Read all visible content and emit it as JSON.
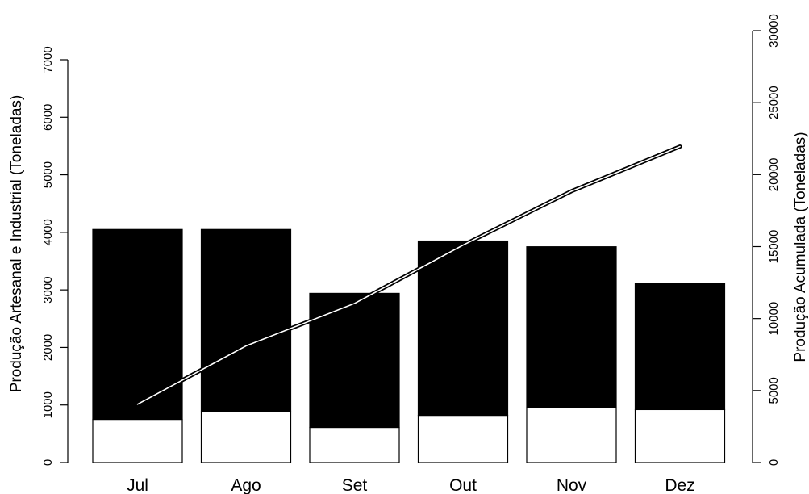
{
  "chart_data": {
    "type": "bar",
    "title": "",
    "categories": [
      "Jul",
      "Ago",
      "Set",
      "Out",
      "Nov",
      "Dez"
    ],
    "series": [
      {
        "name": "",
        "axis": "left",
        "kind": "stacked-bar",
        "color": "#ffffff",
        "edge": "#000000",
        "values": [
          750,
          880,
          610,
          820,
          950,
          920
        ]
      },
      {
        "name": "",
        "axis": "left",
        "kind": "stacked-bar",
        "color": "#000000",
        "edge": "#000000",
        "values": [
          3300,
          3170,
          2330,
          3030,
          2800,
          2190
        ]
      },
      {
        "name": "",
        "axis": "right",
        "kind": "line",
        "color": "#000000",
        "inner_color": "#ffffff",
        "values": [
          4050,
          8100,
          11050,
          15100,
          18850,
          21950
        ]
      }
    ],
    "y_left": {
      "label": "Produção Artesanal e Industrial (Toneladas)",
      "lim": [
        0,
        7000
      ],
      "ticks": [
        "0",
        "1000",
        "2000",
        "3000",
        "4000",
        "5000",
        "6000",
        "7000"
      ]
    },
    "y_right": {
      "label": "Produção Acumulada (Toneladas)",
      "lim": [
        0,
        30000
      ],
      "ticks": [
        "0",
        "5000",
        "10000",
        "15000",
        "20000",
        "25000",
        "30000"
      ]
    },
    "grid": false,
    "legend": "none"
  }
}
